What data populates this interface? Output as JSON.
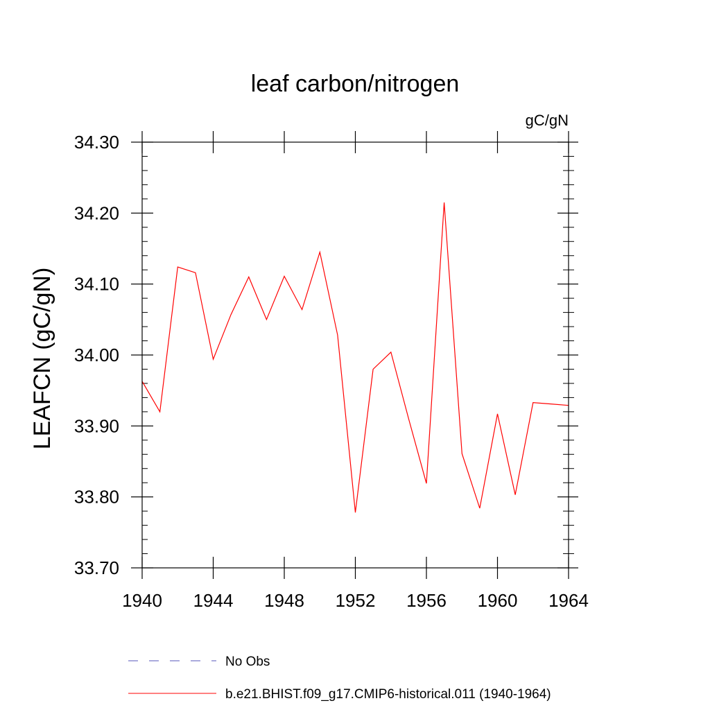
{
  "chart_data": {
    "type": "line",
    "title": "leaf carbon/nitrogen",
    "units_label": "gC/gN",
    "ylabel": "LEAFCN  (gC/gN)",
    "xlabel": "",
    "xlim": [
      1940,
      1964
    ],
    "ylim": [
      33.7,
      34.3
    ],
    "x_ticks": [
      1940,
      1944,
      1948,
      1952,
      1956,
      1960,
      1964
    ],
    "x_tick_labels": [
      "1940",
      "1944",
      "1948",
      "1952",
      "1956",
      "1960",
      "1964"
    ],
    "y_ticks": [
      33.7,
      33.8,
      33.9,
      34.0,
      34.1,
      34.2,
      34.3
    ],
    "y_tick_labels": [
      "33.70",
      "33.80",
      "33.90",
      "34.00",
      "34.10",
      "34.20",
      "34.30"
    ],
    "grid": false,
    "legend_position": "bottom",
    "series": [
      {
        "name": "b.e21.BHIST.f09_g17.CMIP6-historical.011 (1940-1964)",
        "color": "#ff0000",
        "style": "solid",
        "x": [
          1940,
          1941,
          1942,
          1943,
          1944,
          1945,
          1946,
          1947,
          1948,
          1949,
          1950,
          1951,
          1952,
          1953,
          1954,
          1955,
          1956,
          1957,
          1958,
          1959,
          1960,
          1961,
          1962,
          1963,
          1964
        ],
        "y": [
          33.963,
          33.92,
          34.124,
          34.116,
          33.994,
          34.057,
          34.11,
          34.05,
          34.111,
          34.064,
          34.145,
          34.028,
          33.778,
          33.98,
          34.004,
          33.91,
          33.819,
          34.215,
          33.861,
          33.784,
          33.917,
          33.803,
          33.933,
          33.931,
          33.929
        ]
      }
    ],
    "legend": [
      {
        "label": "No Obs",
        "color": "#5555bb",
        "style": "dashed"
      },
      {
        "label": "b.e21.BHIST.f09_g17.CMIP6-historical.011 (1940-1964)",
        "color": "#ff0000",
        "style": "solid"
      }
    ]
  }
}
